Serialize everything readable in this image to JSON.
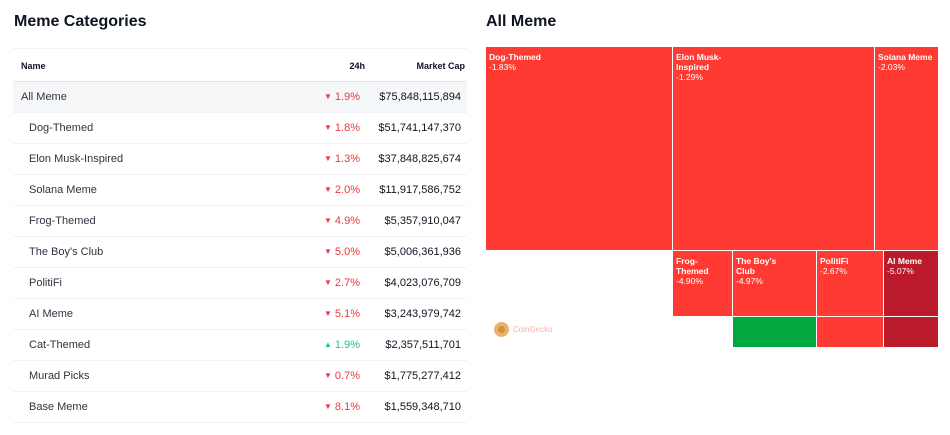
{
  "left": {
    "title": "Meme Categories",
    "columns": {
      "name": "Name",
      "change": "24h",
      "market_cap": "Market Cap"
    },
    "rows": [
      {
        "name": "All Meme",
        "change": "1.9%",
        "direction": "down",
        "market_cap": "$75,848,115,894"
      },
      {
        "name": "Dog-Themed",
        "change": "1.8%",
        "direction": "down",
        "market_cap": "$51,741,147,370"
      },
      {
        "name": "Elon Musk-Inspired",
        "change": "1.3%",
        "direction": "down",
        "market_cap": "$37,848,825,674"
      },
      {
        "name": "Solana Meme",
        "change": "2.0%",
        "direction": "down",
        "market_cap": "$11,917,586,752"
      },
      {
        "name": "Frog-Themed",
        "change": "4.9%",
        "direction": "down",
        "market_cap": "$5,357,910,047"
      },
      {
        "name": "The Boy's Club",
        "change": "5.0%",
        "direction": "down",
        "market_cap": "$5,006,361,936"
      },
      {
        "name": "PolitiFi",
        "change": "2.7%",
        "direction": "down",
        "market_cap": "$4,023,076,709"
      },
      {
        "name": "AI Meme",
        "change": "5.1%",
        "direction": "down",
        "market_cap": "$3,243,979,742"
      },
      {
        "name": "Cat-Themed",
        "change": "1.9%",
        "direction": "up",
        "market_cap": "$2,357,511,701"
      },
      {
        "name": "Murad Picks",
        "change": "0.7%",
        "direction": "down",
        "market_cap": "$1,775,277,412"
      },
      {
        "name": "Base Meme",
        "change": "8.1%",
        "direction": "down",
        "market_cap": "$1,559,348,710"
      }
    ]
  },
  "right": {
    "title": "All Meme",
    "watermark": "CoinGecko",
    "tiles": [
      {
        "name": "Dog-Themed",
        "change": "-1.83%",
        "color": "#ff3a33"
      },
      {
        "name": "Elon Musk-Inspired",
        "change": "-1.29%",
        "color": "#ff3a33"
      },
      {
        "name": "Solana Meme",
        "change": "-2.03%",
        "color": "#ff3a33"
      },
      {
        "name": "Frog-Themed",
        "change": "-4.90%",
        "color": "#ff3a33"
      },
      {
        "name": "The Boy's Club",
        "change": "-4.97%",
        "color": "#ff3a33"
      },
      {
        "name": "PolitiFi",
        "change": "-2.67%",
        "color": "#ff3a33"
      },
      {
        "name": "AI Meme",
        "change": "-5.07%",
        "color": "#bb1a2b"
      },
      {
        "name": "",
        "change": "",
        "color": "#00a83e"
      },
      {
        "name": "",
        "change": "",
        "color": "#ff3a33"
      },
      {
        "name": "",
        "change": "",
        "color": "#bb1a2b"
      }
    ]
  },
  "colors": {
    "down": "#ea3943",
    "up": "#16c784"
  }
}
